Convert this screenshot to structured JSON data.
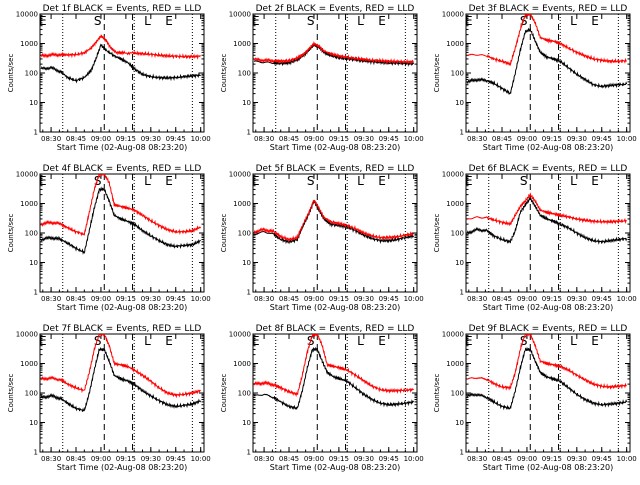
{
  "colors": {
    "events": "#000000",
    "lld": "#ff0000",
    "background": "#ffffff"
  },
  "common": {
    "ylabel": "Counts/sec",
    "xlabel": "Start Time (02-Aug-08 08:23:20)",
    "x_ticks": [
      "08:30",
      "08:45",
      "09:00",
      "09:15",
      "09:30",
      "09:45",
      "10:00"
    ],
    "x_tick_minutes": [
      30,
      45,
      60,
      75,
      90,
      105,
      120
    ],
    "y_ticks": [
      "1",
      "10",
      "100",
      "1000",
      "10000"
    ],
    "y_tick_values": [
      1,
      10,
      100,
      1000,
      10000
    ],
    "ylim": [
      1,
      10000
    ],
    "xlim_minutes": [
      23.33,
      122
    ],
    "y_scale": "log",
    "dotted_lines_minutes": [
      37,
      80,
      115
    ],
    "dashed_lines_minutes": [
      62,
      79
    ],
    "markers": [
      {
        "text": "E",
        "minute": 25
      },
      {
        "text": "S",
        "minute": 58
      },
      {
        "text": "L",
        "minute": 88
      },
      {
        "text": "E",
        "minute": 101
      }
    ]
  },
  "chart_data": [
    {
      "type": "line",
      "title": "Det 1f BLACK = Events, RED = LLD",
      "series": [
        {
          "name": "Events",
          "x": [
            24,
            30,
            36,
            40,
            45,
            50,
            54,
            57,
            60,
            63,
            68,
            72,
            76,
            80,
            85,
            90,
            95,
            100,
            105,
            110,
            115,
            120
          ],
          "y": [
            140,
            150,
            110,
            70,
            55,
            70,
            120,
            300,
            900,
            600,
            380,
            300,
            230,
            140,
            90,
            75,
            70,
            68,
            70,
            75,
            80,
            85
          ]
        },
        {
          "name": "LLD",
          "x": [
            24,
            30,
            36,
            40,
            45,
            50,
            54,
            57,
            60,
            63,
            66,
            69,
            73,
            80,
            85,
            90,
            95,
            100,
            105,
            110,
            115,
            120
          ],
          "y": [
            380,
            410,
            420,
            410,
            420,
            480,
            700,
            1100,
            1800,
            1300,
            700,
            500,
            480,
            470,
            450,
            430,
            400,
            380,
            370,
            360,
            360,
            370
          ]
        }
      ]
    },
    {
      "type": "line",
      "title": "Det 2f BLACK = Events, RED = LLD",
      "series": [
        {
          "name": "Events",
          "x": [
            24,
            30,
            36,
            40,
            45,
            50,
            54,
            57,
            60,
            63,
            66,
            70,
            75,
            80,
            85,
            90,
            95,
            100,
            105,
            110,
            115,
            120
          ],
          "y": [
            250,
            230,
            220,
            210,
            220,
            280,
            400,
            600,
            900,
            750,
            500,
            400,
            330,
            300,
            280,
            260,
            240,
            230,
            220,
            215,
            210,
            205
          ]
        },
        {
          "name": "LLD",
          "x": [
            24,
            30,
            36,
            40,
            45,
            50,
            54,
            57,
            60,
            63,
            66,
            70,
            75,
            80,
            85,
            90,
            95,
            100,
            105,
            110,
            115,
            120
          ],
          "y": [
            290,
            270,
            260,
            250,
            260,
            320,
            450,
            650,
            1000,
            800,
            560,
            450,
            380,
            340,
            310,
            290,
            270,
            260,
            250,
            245,
            240,
            240
          ]
        }
      ]
    },
    {
      "type": "line",
      "title": "Det 3f BLACK = Events, RED = LLD",
      "series": [
        {
          "name": "Events",
          "x": [
            24,
            30,
            36,
            40,
            45,
            50,
            53,
            56,
            59,
            62,
            65,
            68,
            72,
            76,
            80,
            85,
            90,
            95,
            100,
            105,
            110,
            115,
            120
          ],
          "y": [
            50,
            60,
            55,
            45,
            30,
            20,
            100,
            600,
            2500,
            3000,
            1200,
            500,
            350,
            300,
            250,
            150,
            90,
            60,
            40,
            35,
            38,
            40,
            42
          ]
        },
        {
          "name": "LLD",
          "x": [
            24,
            30,
            36,
            40,
            45,
            50,
            53,
            56,
            59,
            62,
            65,
            68,
            72,
            76,
            80,
            85,
            90,
            95,
            100,
            105,
            110,
            115,
            120
          ],
          "y": [
            400,
            420,
            380,
            300,
            250,
            200,
            700,
            3000,
            9000,
            10000,
            5000,
            1600,
            1300,
            1200,
            1000,
            700,
            500,
            380,
            300,
            270,
            250,
            250,
            260
          ]
        }
      ]
    },
    {
      "type": "line",
      "title": "Det 4f BLACK = Events, RED = LLD",
      "series": [
        {
          "name": "Events",
          "x": [
            24,
            30,
            36,
            40,
            45,
            50,
            53,
            56,
            59,
            62,
            65,
            68,
            72,
            76,
            80,
            85,
            90,
            95,
            100,
            105,
            110,
            115,
            120
          ],
          "y": [
            60,
            70,
            60,
            45,
            30,
            22,
            120,
            700,
            3000,
            3000,
            1200,
            400,
            300,
            250,
            200,
            120,
            80,
            55,
            40,
            35,
            38,
            40,
            55
          ]
        },
        {
          "name": "LLD",
          "x": [
            24,
            30,
            36,
            40,
            45,
            50,
            53,
            56,
            59,
            62,
            65,
            68,
            72,
            76,
            80,
            85,
            90,
            95,
            100,
            105,
            110,
            115,
            120
          ],
          "y": [
            200,
            230,
            200,
            150,
            110,
            90,
            500,
            3000,
            10000,
            10000,
            5000,
            900,
            800,
            700,
            600,
            400,
            260,
            180,
            130,
            110,
            110,
            120,
            160
          ]
        }
      ]
    },
    {
      "type": "line",
      "title": "Det 5f BLACK = Events, RED = LLD",
      "series": [
        {
          "name": "Events",
          "x": [
            24,
            30,
            36,
            40,
            45,
            50,
            54,
            57,
            60,
            63,
            66,
            70,
            75,
            80,
            85,
            90,
            95,
            100,
            105,
            110,
            115,
            120
          ],
          "y": [
            90,
            110,
            90,
            60,
            50,
            60,
            200,
            450,
            1200,
            600,
            300,
            200,
            180,
            160,
            120,
            85,
            65,
            55,
            55,
            60,
            70,
            80
          ]
        },
        {
          "name": "LLD",
          "x": [
            24,
            30,
            36,
            40,
            45,
            50,
            54,
            57,
            60,
            63,
            66,
            70,
            75,
            80,
            85,
            90,
            95,
            100,
            105,
            110,
            115,
            120
          ],
          "y": [
            110,
            130,
            110,
            75,
            60,
            70,
            230,
            500,
            1300,
            700,
            340,
            240,
            210,
            180,
            140,
            100,
            80,
            70,
            70,
            75,
            85,
            95
          ]
        }
      ]
    },
    {
      "type": "line",
      "title": "Det 6f BLACK = Events, RED = LLD",
      "series": [
        {
          "name": "Events",
          "x": [
            24,
            30,
            36,
            40,
            45,
            50,
            53,
            56,
            59,
            62,
            65,
            68,
            72,
            76,
            80,
            85,
            90,
            95,
            100,
            105,
            110,
            115,
            120
          ],
          "y": [
            100,
            130,
            120,
            80,
            60,
            50,
            120,
            500,
            900,
            1500,
            800,
            400,
            300,
            250,
            200,
            150,
            100,
            70,
            55,
            50,
            55,
            60,
            65
          ]
        },
        {
          "name": "LLD",
          "x": [
            24,
            30,
            36,
            40,
            45,
            50,
            53,
            56,
            59,
            62,
            65,
            68,
            72,
            76,
            80,
            85,
            90,
            95,
            100,
            105,
            110,
            115,
            120
          ],
          "y": [
            300,
            340,
            330,
            280,
            230,
            200,
            400,
            800,
            1200,
            2000,
            1200,
            600,
            500,
            450,
            400,
            350,
            300,
            270,
            250,
            240,
            240,
            250,
            260
          ]
        }
      ]
    },
    {
      "type": "line",
      "title": "Det 7f BLACK = Events, RED = LLD",
      "series": [
        {
          "name": "Events",
          "x": [
            24,
            30,
            36,
            40,
            45,
            50,
            53,
            56,
            59,
            62,
            65,
            68,
            72,
            76,
            80,
            85,
            90,
            95,
            100,
            105,
            110,
            115,
            120
          ],
          "y": [
            70,
            80,
            65,
            45,
            30,
            25,
            100,
            600,
            3000,
            3000,
            1200,
            400,
            300,
            260,
            200,
            120,
            80,
            55,
            40,
            35,
            38,
            42,
            55
          ]
        },
        {
          "name": "LLD",
          "x": [
            24,
            30,
            36,
            40,
            45,
            50,
            53,
            56,
            59,
            62,
            65,
            68,
            72,
            76,
            80,
            85,
            90,
            95,
            100,
            105,
            110,
            115,
            120
          ],
          "y": [
            300,
            320,
            280,
            200,
            150,
            120,
            500,
            3000,
            10000,
            10000,
            4000,
            1000,
            900,
            800,
            600,
            400,
            250,
            150,
            100,
            85,
            90,
            100,
            120
          ]
        }
      ]
    },
    {
      "type": "line",
      "title": "Det 8f BLACK = Events, RED = LLD",
      "series": [
        {
          "name": "Events",
          "x": [
            24,
            30,
            36,
            40,
            45,
            50,
            53,
            56,
            59,
            62,
            65,
            68,
            72,
            76,
            80,
            85,
            90,
            95,
            100,
            105,
            110,
            115,
            120
          ],
          "y": [
            80,
            90,
            70,
            50,
            35,
            30,
            120,
            700,
            3000,
            3000,
            1200,
            500,
            350,
            300,
            250,
            150,
            90,
            60,
            45,
            40,
            42,
            45,
            50
          ]
        },
        {
          "name": "LLD",
          "x": [
            24,
            30,
            36,
            40,
            45,
            50,
            53,
            56,
            59,
            62,
            65,
            68,
            72,
            76,
            80,
            85,
            90,
            95,
            100,
            105,
            110,
            115,
            120
          ],
          "y": [
            200,
            220,
            190,
            150,
            110,
            90,
            400,
            2500,
            9000,
            10000,
            4000,
            900,
            800,
            700,
            600,
            400,
            260,
            170,
            130,
            120,
            120,
            125,
            130
          ]
        }
      ]
    },
    {
      "type": "line",
      "title": "Det 9f BLACK = Events, RED = LLD",
      "series": [
        {
          "name": "Events",
          "x": [
            24,
            30,
            36,
            40,
            45,
            50,
            53,
            56,
            59,
            62,
            65,
            68,
            72,
            76,
            80,
            85,
            90,
            95,
            100,
            105,
            110,
            115,
            120
          ],
          "y": [
            80,
            90,
            70,
            50,
            35,
            30,
            120,
            700,
            3000,
            3000,
            1200,
            500,
            350,
            300,
            250,
            150,
            90,
            60,
            45,
            40,
            42,
            45,
            50
          ]
        },
        {
          "name": "LLD",
          "x": [
            24,
            30,
            36,
            40,
            45,
            50,
            53,
            56,
            59,
            62,
            65,
            68,
            72,
            76,
            80,
            85,
            90,
            95,
            100,
            105,
            110,
            115,
            120
          ],
          "y": [
            300,
            330,
            290,
            210,
            160,
            150,
            500,
            3000,
            10000,
            10000,
            4000,
            1200,
            1000,
            900,
            800,
            600,
            400,
            280,
            200,
            170,
            160,
            170,
            180
          ]
        }
      ]
    }
  ]
}
